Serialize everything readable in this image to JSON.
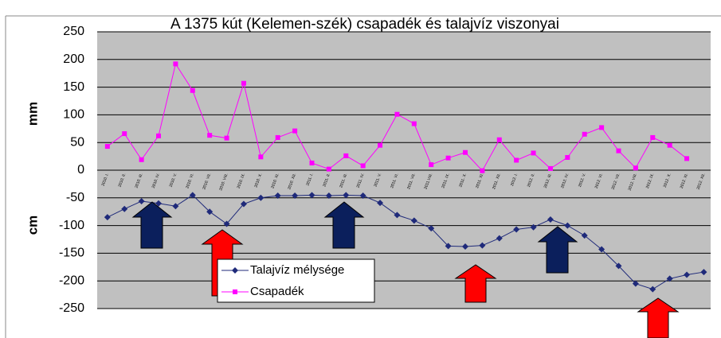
{
  "chart_data": {
    "type": "line",
    "title": "A 1375 kút (Kelemen-szék) csapadék és talajvíz viszonyai",
    "y_label_upper": "mm",
    "y_label_lower": "cm",
    "categories": [
      "2010. I.",
      "2010. II.",
      "2010. III.",
      "2010. IV.",
      "2010. V.",
      "2010. VI.",
      "2010. VII.",
      "2010. VIII.",
      "2010. IX.",
      "2010. X.",
      "2010. XI.",
      "2010. XII.",
      "2011. I.",
      "2011. II.",
      "2011. III.",
      "2011. IV.",
      "2011. V.",
      "2011. VI.",
      "2011. VII.",
      "2011.VIII.",
      "2011. IX.",
      "2011. X.",
      "2011. XI.",
      "2011. XII.",
      "2012. I.",
      "2012. II.",
      "2012. III.",
      "2012. IV.",
      "2012. V.",
      "2012. VI.",
      "2012. VII.",
      "2012. VIII.",
      "2012. IX.",
      "2012. X.",
      "2012. XI.",
      "2012. XII."
    ],
    "series": [
      {
        "name": "Talajvíz mélysége",
        "color": "#1f2a7a",
        "marker": "diamond",
        "values": [
          -85,
          -70,
          -56,
          -60,
          -65,
          -45,
          -75,
          -97,
          -61,
          -50,
          -46,
          -46,
          -45,
          -46,
          -45,
          -46,
          -59,
          -81,
          -91,
          -105,
          -137,
          -138,
          -136,
          -123,
          -107,
          -103,
          -89,
          -100,
          -118,
          -143,
          -173,
          -205,
          -215,
          -196,
          -189,
          -184
        ]
      },
      {
        "name": "Csapadék",
        "color": "#ff00ff",
        "marker": "square",
        "values": [
          43,
          66,
          19,
          62,
          192,
          144,
          63,
          58,
          157,
          24,
          59,
          71,
          13,
          2,
          26,
          8,
          45,
          101,
          84,
          10,
          22,
          32,
          -1,
          55,
          18,
          31,
          3,
          23,
          65,
          77,
          35,
          4,
          59,
          45,
          21,
          null
        ]
      }
    ],
    "ylim": [
      -250,
      250
    ],
    "yticks": [
      250,
      200,
      150,
      100,
      50,
      0,
      -50,
      -100,
      -150,
      -200,
      -250
    ],
    "grid": true
  }
}
